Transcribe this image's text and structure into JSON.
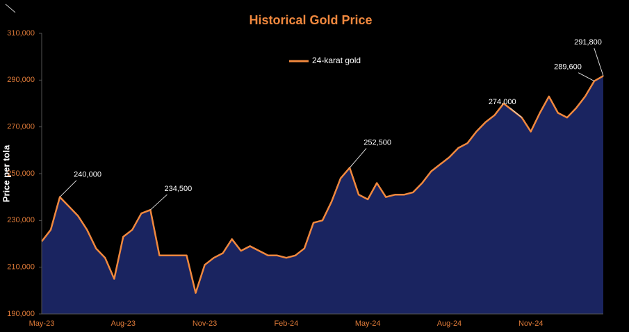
{
  "chart_data": {
    "type": "area",
    "title": "Historical Gold Price",
    "y_label": "Price per tola",
    "categories": [
      "May-23",
      null,
      null,
      null,
      null,
      null,
      null,
      null,
      null,
      "Aug-23",
      null,
      null,
      null,
      null,
      null,
      null,
      null,
      null,
      "Nov-23",
      null,
      null,
      null,
      null,
      null,
      null,
      null,
      null,
      "Feb-24",
      null,
      null,
      null,
      null,
      null,
      null,
      null,
      null,
      "May-24",
      null,
      null,
      null,
      null,
      null,
      null,
      null,
      null,
      "Aug-24",
      null,
      null,
      null,
      null,
      null,
      null,
      null,
      null,
      "Nov-24",
      null,
      null,
      null,
      null,
      null,
      null,
      null,
      null
    ],
    "series": [
      {
        "name": "24-karat gold",
        "color": "#f0883e",
        "fill": "#1a2460",
        "values": [
          221000,
          226000,
          240000,
          236000,
          232000,
          226000,
          218000,
          214000,
          205000,
          223000,
          226000,
          233000,
          234500,
          215000,
          215000,
          215000,
          215000,
          199000,
          211000,
          214000,
          216000,
          222000,
          217000,
          219000,
          217000,
          215000,
          215000,
          214000,
          215000,
          218000,
          229000,
          230000,
          238000,
          248000,
          252500,
          241000,
          239000,
          246000,
          240000,
          241000,
          241000,
          242000,
          246000,
          251000,
          254000,
          257000,
          261000,
          263000,
          268000,
          272000,
          275000,
          280000,
          277000,
          274000,
          268000,
          276000,
          283000,
          276000,
          274000,
          278000,
          283000,
          289600,
          291800
        ],
        "value_labels": [
          null,
          null,
          "240,000",
          null,
          null,
          null,
          null,
          null,
          null,
          null,
          null,
          null,
          "234,500",
          null,
          null,
          null,
          null,
          null,
          null,
          null,
          null,
          null,
          null,
          null,
          null,
          null,
          null,
          null,
          null,
          null,
          null,
          null,
          null,
          null,
          "252,500",
          null,
          null,
          null,
          null,
          null,
          null,
          null,
          null,
          null,
          null,
          null,
          null,
          null,
          null,
          null,
          null,
          null,
          null,
          "274,000",
          null,
          null,
          null,
          null,
          null,
          null,
          null,
          "289,600",
          "291,800"
        ]
      }
    ],
    "ylim": [
      190000,
      310000
    ],
    "yticks": [
      {
        "value": 190000,
        "label": "190,000"
      },
      {
        "value": 210000,
        "label": "210,000"
      },
      {
        "value": 230000,
        "label": "230,000"
      },
      {
        "value": 250000,
        "label": "250,000"
      },
      {
        "value": 270000,
        "label": "270,000"
      },
      {
        "value": 290000,
        "label": "290,000"
      },
      {
        "value": 310000,
        "label": "310,000"
      }
    ],
    "legend": "top"
  }
}
